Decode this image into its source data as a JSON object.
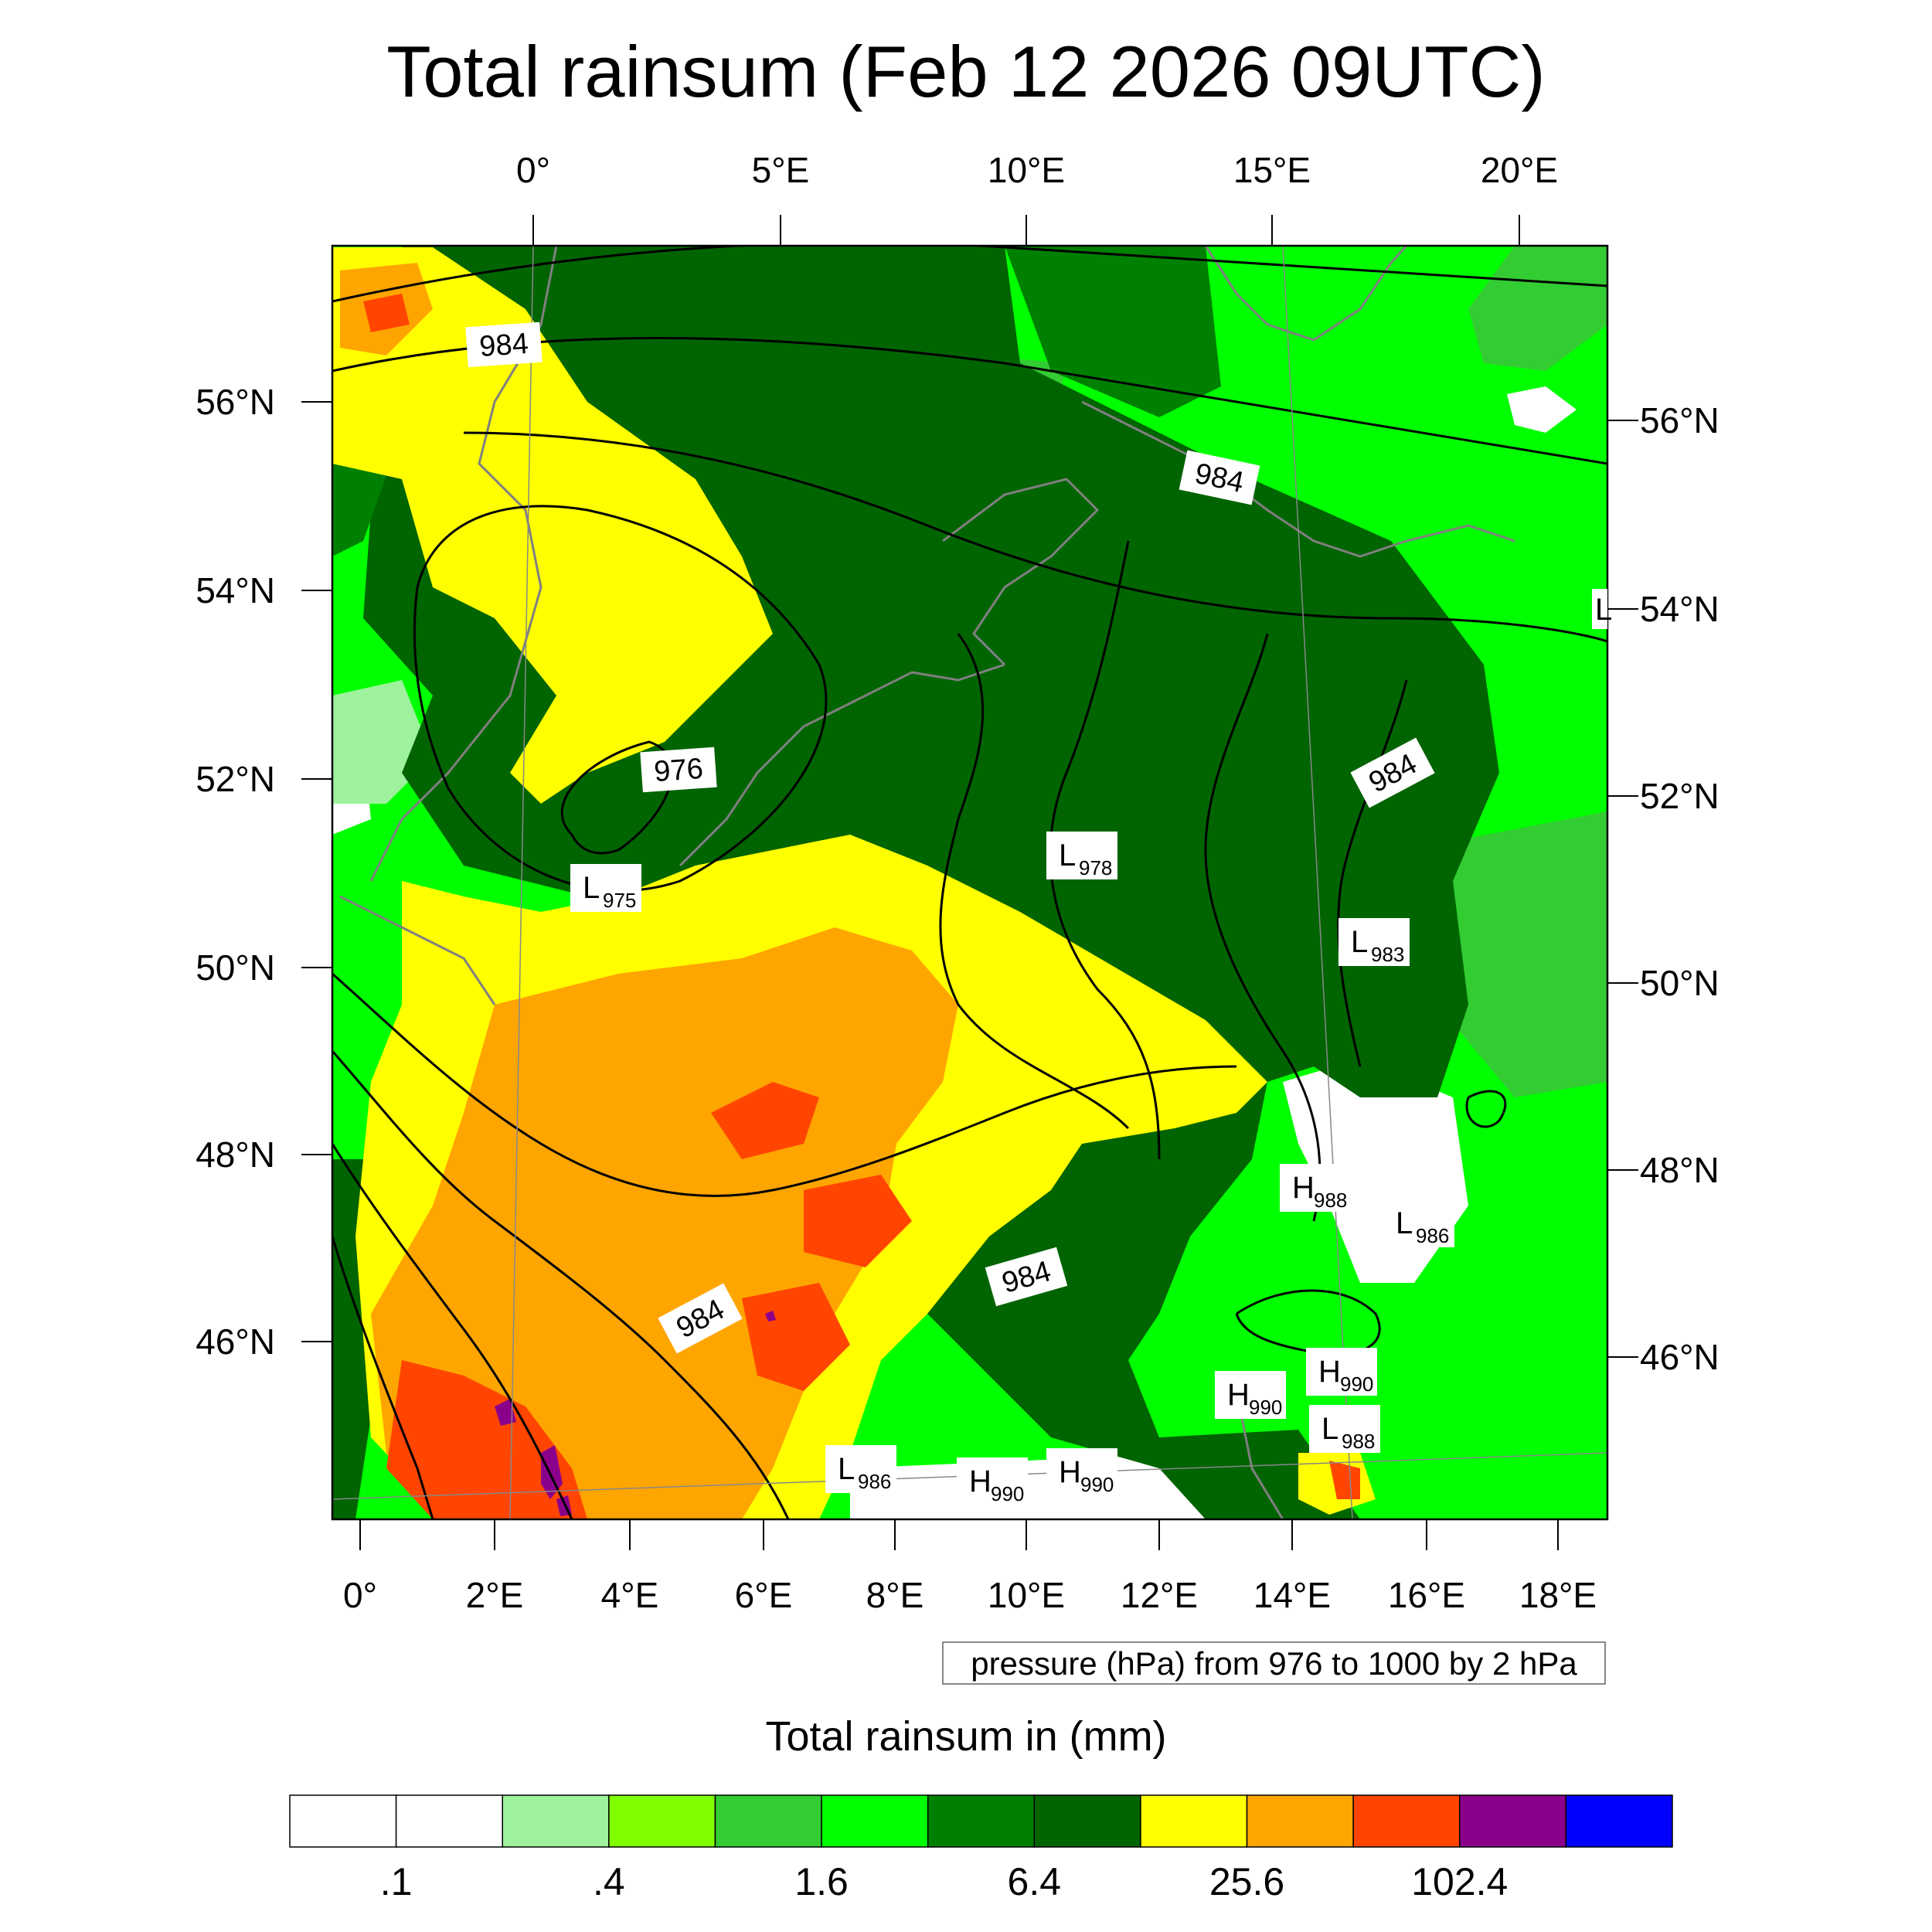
{
  "title": "Total rainsum (Feb 12 2026 09UTC)",
  "top_lon_labels": [
    "0°",
    "5°E",
    "10°E",
    "15°E",
    "20°E"
  ],
  "bottom_lon_labels": [
    "0°",
    "2°E",
    "4°E",
    "6°E",
    "8°E",
    "10°E",
    "12°E",
    "14°E",
    "16°E",
    "18°E"
  ],
  "left_lat_labels": [
    "56°N",
    "54°N",
    "52°N",
    "50°N",
    "48°N",
    "46°N"
  ],
  "right_lat_labels": [
    "56°N",
    "54°N",
    "52°N",
    "50°N",
    "48°N",
    "46°N"
  ],
  "contour_labels": [
    "984",
    "984",
    "976",
    "984",
    "984",
    "984"
  ],
  "pressure_centers": [
    {
      "type": "L",
      "value": "975"
    },
    {
      "type": "L",
      "value": "978"
    },
    {
      "type": "L",
      "value": "983"
    },
    {
      "type": "H",
      "value": "988"
    },
    {
      "type": "L",
      "value": "986"
    },
    {
      "type": "H",
      "value": "990"
    },
    {
      "type": "H",
      "value": "990"
    },
    {
      "type": "L",
      "value": "988"
    },
    {
      "type": "L",
      "value": "986"
    },
    {
      "type": "H",
      "value": "990"
    },
    {
      "type": "H",
      "value": "990"
    }
  ],
  "edge_marker": "L",
  "pressure_note": "pressure (hPa) from 976 to 1000 by 2 hPa",
  "legend": {
    "title": "Total rainsum in (mm)",
    "colors": [
      "#ffffff",
      "#ffffff",
      "#9ef29e",
      "#80ff00",
      "#33cc33",
      "#00ff00",
      "#008000",
      "#006400",
      "#ffff00",
      "#ffa500",
      "#ff4500",
      "#8b008b",
      "#0000ff"
    ],
    "tick_labels": [
      ".1",
      ".4",
      "1.6",
      "6.4",
      "25.6",
      "102.4"
    ]
  },
  "colors": {
    "contour": "#000000",
    "coastline": "#808080"
  }
}
